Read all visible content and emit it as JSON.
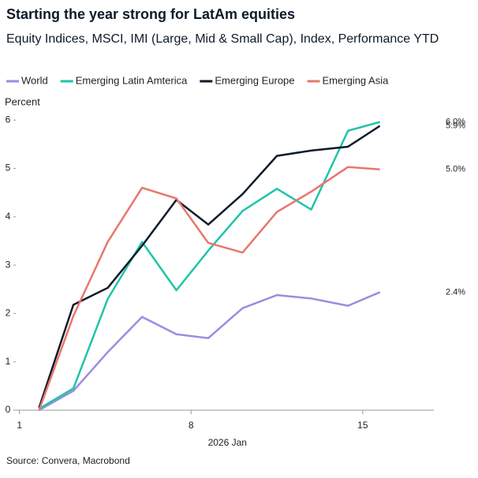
{
  "chart_data": {
    "type": "line",
    "title": "Starting the year strong for LatAm equities",
    "subtitle": "Equity Indices, MSCI, IMI (Large, Mid & Small Cap), Index, Performance YTD",
    "y_label": "Percent",
    "x_label": "2026 Jan",
    "source": "Source: Convera, Macrobond",
    "x": [
      1.8,
      3.2,
      4.6,
      6.0,
      7.4,
      8.7,
      10.1,
      11.5,
      12.9,
      14.4,
      15.7
    ],
    "series": [
      {
        "name": "World",
        "color": "#9b8de0",
        "values": [
          0,
          0.4,
          1.2,
          1.93,
          1.57,
          1.49,
          2.11,
          2.38,
          2.31,
          2.16,
          2.44
        ],
        "value_labels": [
          null,
          null,
          null,
          null,
          null,
          null,
          null,
          null,
          null,
          null,
          "2.4%"
        ]
      },
      {
        "name": "Emerging Latin Amterica",
        "color": "#1fc4a8",
        "values": [
          0.03,
          0.45,
          2.3,
          3.48,
          2.48,
          3.3,
          4.12,
          4.58,
          4.15,
          5.78,
          5.96
        ],
        "value_labels": [
          null,
          null,
          null,
          null,
          null,
          null,
          null,
          null,
          null,
          null,
          "6.0%"
        ]
      },
      {
        "name": "Emerging Europe",
        "color": "#0d1b2a",
        "values": [
          0.05,
          2.18,
          2.53,
          3.4,
          4.35,
          3.84,
          4.47,
          5.26,
          5.37,
          5.45,
          5.88
        ],
        "value_labels": [
          null,
          null,
          null,
          null,
          null,
          null,
          null,
          null,
          null,
          null,
          "5.9%"
        ]
      },
      {
        "name": "Emerging Asia",
        "color": "#e8776c",
        "values": [
          0,
          1.95,
          3.48,
          4.6,
          4.38,
          3.46,
          3.26,
          4.1,
          4.52,
          5.03,
          4.98
        ],
        "value_labels": [
          null,
          null,
          null,
          null,
          null,
          null,
          null,
          null,
          null,
          null,
          "5.0%"
        ]
      }
    ],
    "xlim": [
      0.85,
      17.9
    ],
    "xticks": [
      1,
      8,
      15
    ],
    "ylim": [
      0,
      6.2
    ],
    "yticks": [
      0,
      1,
      2,
      3,
      4,
      5,
      6
    ]
  }
}
